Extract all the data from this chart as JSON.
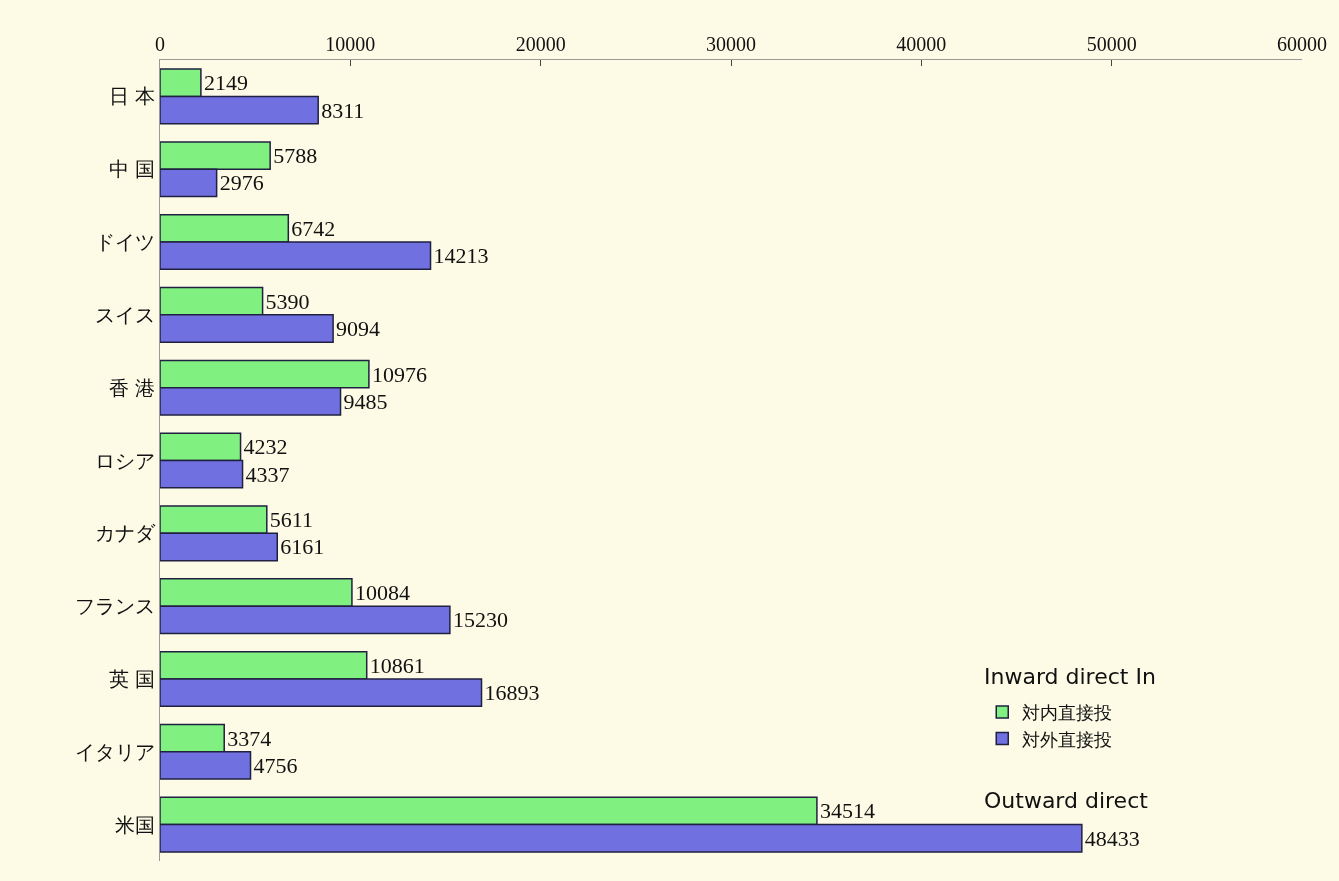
{
  "chart_data": {
    "type": "bar",
    "orientation": "horizontal",
    "categories": [
      "日 本",
      "中 国",
      "ドイツ",
      "スイス",
      "香 港",
      "ロシア",
      "カナダ",
      "フランス",
      "英 国",
      "イタリア",
      "米国"
    ],
    "series": [
      {
        "name": "対内直接投",
        "color": "#80f080",
        "values": [
          2149,
          5788,
          6742,
          5390,
          10976,
          4232,
          5611,
          10084,
          10861,
          3374,
          34514
        ]
      },
      {
        "name": "対外直接投",
        "color": "#7070e0",
        "values": [
          8311,
          2976,
          14213,
          9094,
          9485,
          4337,
          6161,
          15230,
          16893,
          4756,
          48433
        ]
      }
    ],
    "xlim": [
      0,
      60000
    ],
    "xticks": [
      0,
      10000,
      20000,
      30000,
      40000,
      50000,
      60000
    ],
    "data_labels": true,
    "grid": false,
    "legend": "bottom right",
    "annotations": [
      "Inward direct In",
      "Outward direct"
    ]
  }
}
